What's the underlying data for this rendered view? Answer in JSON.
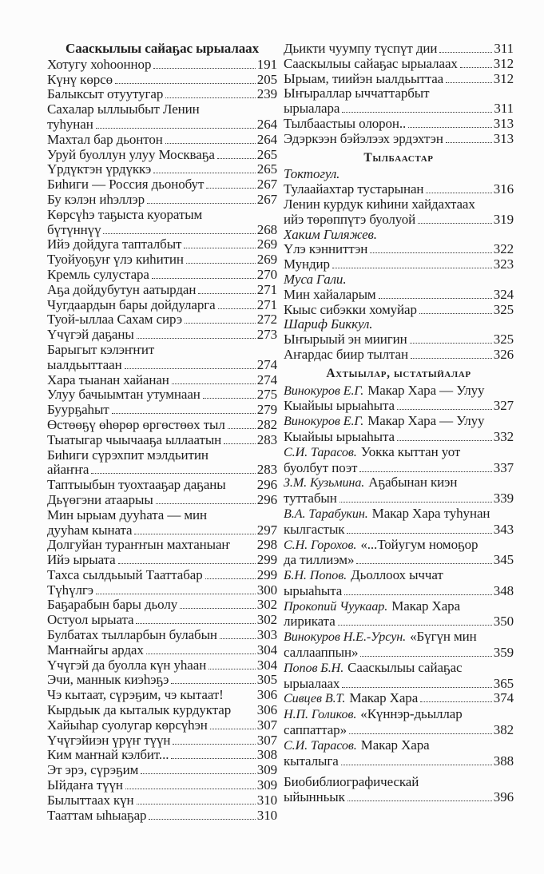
{
  "colors": {
    "ink": "#1e1e1e",
    "paper": "#fcfcfc",
    "dot_leader": "#3a3a3a"
  },
  "document": {
    "columns": {
      "left": [
        {
          "kind": "h1",
          "text": "Сааскылыы сайаҕас ырыалаах"
        },
        {
          "kind": "entry",
          "line1": "Хотугу хоһооннор",
          "page": "191"
        },
        {
          "kind": "entry",
          "line1": "Күнү көрсө",
          "page": "205"
        },
        {
          "kind": "entry",
          "line1": "Балыксыт отуутугар",
          "page": "239"
        },
        {
          "kind": "entry",
          "line1": "Сахалар ыллыыбыт Ленин",
          "line2": "туһунан",
          "page": "264"
        },
        {
          "kind": "entry",
          "line1": "Махтал бар дьонтон",
          "page": "264"
        },
        {
          "kind": "entry",
          "line1": "Уруй буоллун улуу Москваҕа",
          "page": "265"
        },
        {
          "kind": "entry",
          "line1": "Үрдүктэн үрдүккэ",
          "page": "265"
        },
        {
          "kind": "entry",
          "line1": "Биһиги — Россия дьонобут",
          "page": "267"
        },
        {
          "kind": "entry",
          "line1": "Бу кэлэн иһэллэр",
          "page": "267"
        },
        {
          "kind": "entry",
          "line1": "Көрсүһэ таҕыста куоратым",
          "line2": "бүтүннүү",
          "page": "268"
        },
        {
          "kind": "entry",
          "line1": "Ийэ дойдуга тапталбыт",
          "page": "269"
        },
        {
          "kind": "entry",
          "line1": "Туойуоҕуҥ үлэ киһитин",
          "page": "269"
        },
        {
          "kind": "entry",
          "line1": "Кремль сулустара",
          "page": "270"
        },
        {
          "kind": "entry",
          "line1": "Аҕа дойдубутун аатырдан",
          "page": "271"
        },
        {
          "kind": "entry",
          "line1": "Чугдаардын бары дойдуларга",
          "page": "271"
        },
        {
          "kind": "entry",
          "line1": "Туой-ыллаа Сахам сирэ",
          "page": "272"
        },
        {
          "kind": "entry",
          "line1": "Үчүгэй даҕаны",
          "page": "273"
        },
        {
          "kind": "entry",
          "line1": "Барыгыт кэлэҥҥит",
          "line2": "ыалдьыттаан",
          "page": "274"
        },
        {
          "kind": "entry",
          "line1": "Хара тыанан хайанан",
          "page": "274"
        },
        {
          "kind": "entry",
          "line1": "Улуу бачыымтан утумнаан",
          "page": "275"
        },
        {
          "kind": "entry",
          "line1": "Буурҕаһыт",
          "page": "279"
        },
        {
          "kind": "entry",
          "line1": "Өстөөҕү өһөрөр өргөстөөх тыл",
          "page": "282"
        },
        {
          "kind": "entry",
          "line1": "Тыатыгар чыычааҕа ыллаатын",
          "page": "283"
        },
        {
          "kind": "entry",
          "line1": "Биһиги сүрэхпит мэлдьитин",
          "line2": "айаҥҥа",
          "page": "283"
        },
        {
          "kind": "entry",
          "line1": "Таптыыбын туохтааҕар даҕаны",
          "page": "296",
          "dots": false
        },
        {
          "kind": "entry",
          "line1": "Дьүөгэни атаарыы",
          "page": "296"
        },
        {
          "kind": "entry",
          "line1": "Мин ырыам дууһата — мин",
          "line2": "дууһам кыната",
          "page": "297"
        },
        {
          "kind": "entry",
          "line1": "Долгуйан тураҥҥын махтаныаҥ",
          "page": "298",
          "dots": false
        },
        {
          "kind": "entry",
          "line1": "Ийэ ырыата",
          "page": "299"
        },
        {
          "kind": "entry",
          "line1": "Тахса сылдьыый Тааттабар",
          "page": "299"
        },
        {
          "kind": "entry",
          "line1": "Түһүлгэ",
          "page": "300"
        },
        {
          "kind": "entry",
          "line1": "Баҕарабын бары дьолу",
          "page": "302"
        },
        {
          "kind": "entry",
          "line1": "Остуол ырыата",
          "page": "302"
        },
        {
          "kind": "entry",
          "line1": "Булбатах тылларбын булабын",
          "page": "303"
        },
        {
          "kind": "entry",
          "line1": "Маҥнайгы ардах",
          "page": "304"
        },
        {
          "kind": "entry",
          "line1": "Үчүгэй да буолла күн уһаан",
          "page": "304"
        },
        {
          "kind": "entry",
          "line1": "Эчи, маннык киэһэҕэ",
          "page": "305"
        },
        {
          "kind": "entry",
          "line1": "Чэ кытаат, сүрэҕим, чэ кытаат!",
          "page": "306",
          "dots": false
        },
        {
          "kind": "entry",
          "line1": "Кырдьык да кыталык курдуктар",
          "page": "306",
          "dots": false
        },
        {
          "kind": "entry",
          "line1": "Хайыһар суолугар көрсүһэн",
          "page": "307"
        },
        {
          "kind": "entry",
          "line1": "Үчүгэйиэн үрүҥ түүн",
          "page": "307"
        },
        {
          "kind": "entry",
          "line1": "Ким маҥнай кэлбит...",
          "page": "308"
        },
        {
          "kind": "entry",
          "line1": "Эт эрэ, сүрэҕим",
          "page": "309"
        },
        {
          "kind": "entry",
          "line1": "Ыйдаҥа түүн",
          "page": "309"
        },
        {
          "kind": "entry",
          "line1": "Былыттаах күн",
          "page": "310"
        },
        {
          "kind": "entry",
          "line1": "Тааттам ыһыаҕар",
          "page": "310"
        }
      ],
      "right": [
        {
          "kind": "entry",
          "line1": "Дьикти чуумпу түспүт дии",
          "page": "311"
        },
        {
          "kind": "entry",
          "line1": "Сааскылыы сайаҕас ырыалаах",
          "page": "312"
        },
        {
          "kind": "entry",
          "line1": "Ырыам, тиийэн ыалдьыттаа",
          "page": "312"
        },
        {
          "kind": "entry",
          "line1": "Ыҥыраллар ыччаттарбыт",
          "line2": "ырыалара",
          "page": "311"
        },
        {
          "kind": "entry",
          "line1": "Тылбаастыы олорон..",
          "page": "313"
        },
        {
          "kind": "entry",
          "line1": "Эдэркээн бэйэлээх эрдэхтэн",
          "page": "313"
        },
        {
          "kind": "h2",
          "text": "Тылбаастар"
        },
        {
          "kind": "author",
          "text": "Токтогул."
        },
        {
          "kind": "entry",
          "line1": "Тулаайахтар тустарынан",
          "page": "316"
        },
        {
          "kind": "entry",
          "line1": "Ленин курдук киһини хайдахтаах",
          "line2": "ийэ төрөппүтэ буолуой",
          "page": "319"
        },
        {
          "kind": "author",
          "text": "Хаким Гиляжев."
        },
        {
          "kind": "entry",
          "line1": "Үлэ кэнниттэн",
          "page": "322"
        },
        {
          "kind": "entry",
          "line1": "Мундир",
          "page": "323"
        },
        {
          "kind": "author",
          "text": "Муса Гали."
        },
        {
          "kind": "entry",
          "line1": "Мин хайаларым",
          "page": "324"
        },
        {
          "kind": "entry",
          "line1": "Кыыс сибэкки хомуйар",
          "page": "325"
        },
        {
          "kind": "author",
          "text": "Шариф Биккул."
        },
        {
          "kind": "entry",
          "line1": "Ыҥырыый эн миигин",
          "page": "325"
        },
        {
          "kind": "entry",
          "line1": "Аҥардас биир тылтан",
          "page": "326"
        },
        {
          "kind": "h2",
          "text": "Ахтыылар, ыстатыйалар"
        },
        {
          "kind": "entry",
          "author": "Винокуров Е.Г.",
          "line1": "Макар Хара — Улуу",
          "line2": "Кыайыы ырыаһыта",
          "page": "327"
        },
        {
          "kind": "entry",
          "author": "Винокуров Е.Г.",
          "line1": "Макар Хара — Улуу",
          "line2": "Кыайыы ырыаһыта",
          "page": "332"
        },
        {
          "kind": "entry",
          "author": "С.И. Тарасов.",
          "line1": "Уокка кыттан уот",
          "line2": "буолбут поэт",
          "page": "337"
        },
        {
          "kind": "entry",
          "author": "З.М. Кузьмина.",
          "line1": "Аҕабынан киэн",
          "line2": "туттабын",
          "page": "339"
        },
        {
          "kind": "entry",
          "author": "В.А. Тарабукин.",
          "line1": "Макар Хара туһунан",
          "line2": "кылгастык",
          "page": "343"
        },
        {
          "kind": "entry",
          "author": "С.Н. Горохов.",
          "line1": "«...Тойугум номоҕор",
          "line2": "да тиллиэм»",
          "page": "345"
        },
        {
          "kind": "entry",
          "author": "Б.Н. Попов.",
          "line1": "Дьоллоох ыччат",
          "line2": "ырыаһыта",
          "page": "348"
        },
        {
          "kind": "entry",
          "author": "Прокопий Чуукаар.",
          "line1": "Макар Хара",
          "line2": "лириката",
          "page": "350"
        },
        {
          "kind": "entry",
          "author": "Винокуров Н.Е.-Урсун.",
          "line1": "«Бүгүн мин",
          "line2": "саллааппын»",
          "page": "359"
        },
        {
          "kind": "entry",
          "author": "Попов Б.Н.",
          "line1": "Сааскылыы сайаҕас",
          "line2": "ырыалаах",
          "page": "365"
        },
        {
          "kind": "entry",
          "author": "Сивцев В.Т.",
          "line1": "Макар Хара",
          "page": "374"
        },
        {
          "kind": "entry",
          "author": "Н.П. Голиков.",
          "line1": "«Күннэр-дьыллар",
          "line2": "саппаттар»",
          "page": "382"
        },
        {
          "kind": "entry",
          "author": "С.И. Тарасов.",
          "line1": "Макар Хара",
          "line2": "кыталыга",
          "page": "388"
        },
        {
          "kind": "entry",
          "line1": "Биобиблиографическай",
          "line2": "ыйынньык",
          "page": "396",
          "gap": true
        }
      ]
    }
  }
}
